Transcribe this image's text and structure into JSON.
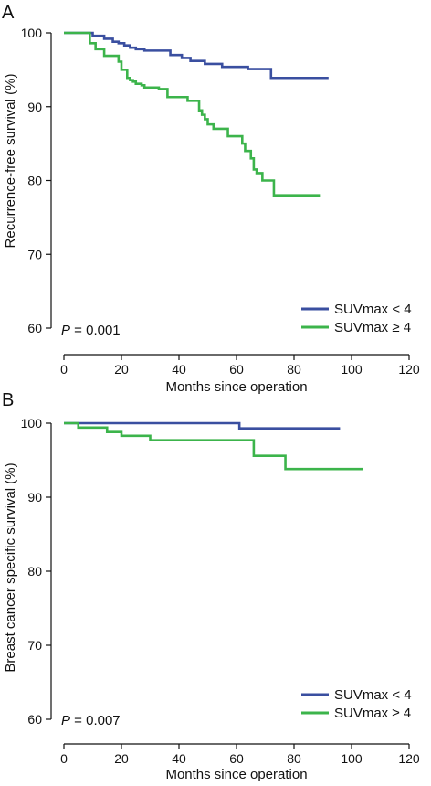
{
  "colors": {
    "blue": "#3a4fa0",
    "green": "#3cb44b",
    "axis": "#111111"
  },
  "chart_data": [
    {
      "panel": "A",
      "type": "line",
      "title": "",
      "xlabel": "Months since operation",
      "ylabel": "Recurrence-free survival (%)",
      "xlim": [
        0,
        120
      ],
      "ylim": [
        60,
        100
      ],
      "xticks": [
        0,
        20,
        40,
        60,
        80,
        100,
        120
      ],
      "yticks": [
        60,
        70,
        80,
        90,
        100
      ],
      "grid": false,
      "legend_position": "bottom-right",
      "annotation": {
        "p_label": "P",
        "p_value": " = 0.001"
      },
      "series": [
        {
          "name": "SUVmax < 4",
          "color": "#3a4fa0",
          "x": [
            0,
            10,
            14,
            17,
            19,
            21,
            23,
            25,
            28,
            37,
            41,
            44,
            49,
            55,
            64,
            72,
            92
          ],
          "y": [
            100,
            99.6,
            99.2,
            98.8,
            98.6,
            98.3,
            98.0,
            97.8,
            97.6,
            97.0,
            96.6,
            96.2,
            95.8,
            95.4,
            95.1,
            93.9,
            93.9
          ]
        },
        {
          "name": "SUVmax ≥ 4",
          "color": "#3cb44b",
          "x": [
            0,
            9,
            11,
            14,
            19,
            20,
            22,
            23,
            24,
            25,
            27,
            28,
            33,
            36,
            43,
            47,
            48,
            49,
            50,
            52,
            57,
            62,
            63,
            65,
            66,
            67,
            69,
            73,
            89
          ],
          "y": [
            100,
            98.6,
            97.8,
            96.9,
            96.1,
            95.0,
            93.9,
            93.6,
            93.4,
            93.1,
            92.9,
            92.6,
            92.4,
            91.3,
            90.8,
            89.5,
            88.9,
            88.3,
            87.6,
            87.0,
            86.0,
            85.0,
            84.0,
            83.0,
            81.5,
            81.0,
            80.0,
            78.0,
            78.0
          ]
        }
      ]
    },
    {
      "panel": "B",
      "type": "line",
      "title": "",
      "xlabel": "Months since operation",
      "ylabel": "Breast cancer specific survival (%)",
      "xlim": [
        0,
        120
      ],
      "ylim": [
        60,
        100
      ],
      "xticks": [
        0,
        20,
        40,
        60,
        80,
        100,
        120
      ],
      "yticks": [
        60,
        70,
        80,
        90,
        100
      ],
      "grid": false,
      "legend_position": "bottom-right",
      "annotation": {
        "p_label": "P",
        "p_value": " = 0.007"
      },
      "series": [
        {
          "name": "SUVmax < 4",
          "color": "#3a4fa0",
          "x": [
            0,
            61,
            96
          ],
          "y": [
            100,
            99.3,
            99.3
          ]
        },
        {
          "name": "SUVmax ≥ 4",
          "color": "#3cb44b",
          "x": [
            0,
            5,
            15,
            20,
            30,
            66,
            77,
            104
          ],
          "y": [
            100,
            99.4,
            98.8,
            98.3,
            97.7,
            95.6,
            93.8,
            93.8
          ]
        }
      ]
    }
  ]
}
